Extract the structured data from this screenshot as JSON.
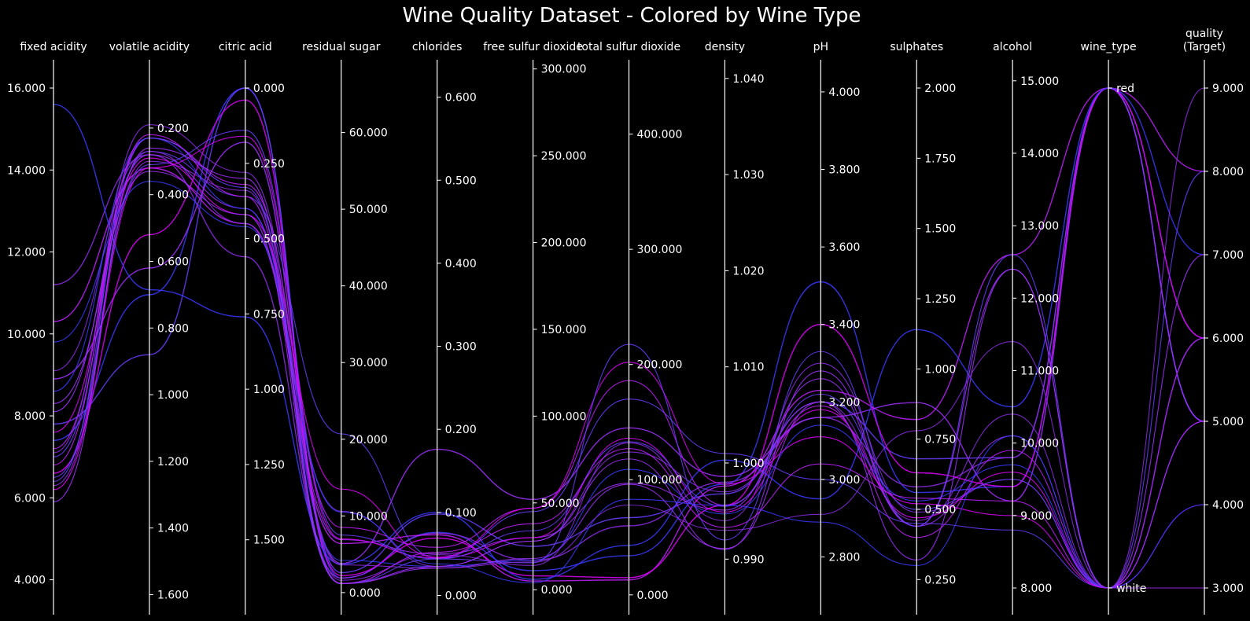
{
  "chart_data": {
    "type": "parallel_coordinates",
    "title": "Wine Quality Dataset - Colored by Wine Type",
    "background": "#000000",
    "line_colors": [
      "#3a3aff",
      "#6a3cff",
      "#8a2be2",
      "#a030ff",
      "#c020ff",
      "#e000ff"
    ],
    "axes": [
      {
        "label": "fixed acidity",
        "min": 3.8,
        "max": 16.0,
        "ticks": [
          16.0,
          14.0,
          12.0,
          10.0,
          8.0,
          6.0,
          4.0
        ],
        "tick_labels": [
          "16.000",
          "14.000",
          "12.000",
          "10.000",
          "8.000",
          "6.000",
          "4.000"
        ],
        "tick_side": "left"
      },
      {
        "label": "volatile acidity",
        "min": 0.08,
        "max": 1.58,
        "inverted": true,
        "ticks": [
          0.2,
          0.4,
          0.6,
          0.8,
          1.0,
          1.2,
          1.4,
          1.6
        ],
        "tick_labels": [
          "0.200",
          "0.400",
          "0.600",
          "0.800",
          "1.000",
          "1.200",
          "1.400",
          "1.600"
        ],
        "tick_side": "right"
      },
      {
        "label": "citric acid",
        "min": 0.0,
        "max": 1.66,
        "inverted": true,
        "ticks": [
          0.0,
          0.25,
          0.5,
          0.75,
          1.0,
          1.25,
          1.5
        ],
        "tick_labels": [
          "0.000",
          "0.250",
          "0.500",
          "0.750",
          "1.000",
          "1.250",
          "1.500"
        ],
        "tick_side": "right"
      },
      {
        "label": "residual sugar",
        "min": 0.6,
        "max": 65.8,
        "ticks": [
          0,
          10,
          20,
          30,
          40,
          50,
          60
        ],
        "tick_labels": [
          "0.000",
          "10.000",
          "20.000",
          "30.000",
          "40.000",
          "50.000",
          "60.000"
        ],
        "tick_side": "right"
      },
      {
        "label": "chlorides",
        "min": 0.009,
        "max": 0.611,
        "ticks": [
          0,
          0.1,
          0.2,
          0.3,
          0.4,
          0.5,
          0.6
        ],
        "tick_labels": [
          "0.000",
          "0.100",
          "0.200",
          "0.300",
          "0.400",
          "0.500",
          "0.600"
        ],
        "tick_side": "right"
      },
      {
        "label": "free sulfur dioxide",
        "min": 1.0,
        "max": 289.0,
        "ticks": [
          0,
          50,
          100,
          150,
          200,
          250,
          300
        ],
        "tick_labels": [
          "0.000",
          "50.000",
          "100.000",
          "150.000",
          "200.000",
          "250.000",
          "300.000"
        ],
        "tick_side": "right"
      },
      {
        "label": "total sulfur dioxide",
        "min": 6.0,
        "max": 440.0,
        "ticks": [
          0,
          100,
          200,
          300,
          400
        ],
        "tick_labels": [
          "0.000",
          "100.000",
          "200.000",
          "300.000",
          "400.000"
        ],
        "tick_side": "right"
      },
      {
        "label": "density",
        "min": 0.987,
        "max": 1.039,
        "ticks": [
          0.99,
          1.0,
          1.01,
          1.02,
          1.03,
          1.04
        ],
        "tick_labels": [
          "0.990",
          "1.000",
          "1.010",
          "1.020",
          "1.030",
          "1.040"
        ],
        "tick_side": "right"
      },
      {
        "label": "pH",
        "min": 2.72,
        "max": 4.01,
        "ticks": [
          2.8,
          3.0,
          3.2,
          3.4,
          3.6,
          3.8,
          4.0
        ],
        "tick_labels": [
          "2.800",
          "3.000",
          "3.200",
          "3.400",
          "3.600",
          "3.800",
          "4.000"
        ],
        "tick_side": "right"
      },
      {
        "label": "sulphates",
        "min": 0.22,
        "max": 2.0,
        "ticks": [
          0.25,
          0.5,
          0.75,
          1.0,
          1.25,
          1.5,
          1.75,
          2.0
        ],
        "tick_labels": [
          "0.250",
          "0.500",
          "0.750",
          "1.000",
          "1.250",
          "1.500",
          "1.750",
          "2.000"
        ],
        "tick_side": "right"
      },
      {
        "label": "alcohol",
        "min": 8.0,
        "max": 14.9,
        "ticks": [
          8,
          9,
          10,
          11,
          12,
          13,
          14,
          15
        ],
        "tick_labels": [
          "8.000",
          "9.000",
          "10.000",
          "11.000",
          "12.000",
          "13.000",
          "14.000",
          "15.000"
        ],
        "tick_side": "right"
      },
      {
        "label": "wine_type",
        "categorical": true,
        "categories": [
          "white",
          "red"
        ],
        "tick_side": "right"
      },
      {
        "label": "quality\n(Target)",
        "min": 3.0,
        "max": 9.0,
        "ticks": [
          3,
          4,
          5,
          6,
          7,
          8,
          9
        ],
        "tick_labels": [
          "3.000",
          "4.000",
          "5.000",
          "6.000",
          "7.000",
          "8.000",
          "9.000"
        ],
        "tick_side": "right"
      }
    ],
    "series": [
      {
        "values": [
          7.4,
          0.7,
          0.0,
          1.9,
          0.076,
          11,
          34,
          0.9978,
          3.51,
          0.56,
          9.4,
          "red",
          5
        ]
      },
      {
        "values": [
          7.8,
          0.88,
          0.0,
          2.6,
          0.098,
          25,
          67,
          0.9968,
          3.2,
          0.68,
          9.8,
          "red",
          5
        ]
      },
      {
        "values": [
          11.2,
          0.28,
          0.56,
          1.9,
          0.075,
          17,
          60,
          0.998,
          3.16,
          0.58,
          9.8,
          "red",
          6
        ]
      },
      {
        "values": [
          8.9,
          0.62,
          0.18,
          3.8,
          0.176,
          52,
          145,
          0.9986,
          3.16,
          0.88,
          9.2,
          "red",
          5
        ]
      },
      {
        "values": [
          10.3,
          0.32,
          0.45,
          6.4,
          0.073,
          5,
          13,
          0.9976,
          3.23,
          0.82,
          12.6,
          "red",
          8
        ]
      },
      {
        "values": [
          6.6,
          0.52,
          0.04,
          2.2,
          0.069,
          8,
          15,
          0.9956,
          3.4,
          0.63,
          9.4,
          "red",
          6
        ]
      },
      {
        "values": [
          15.6,
          0.685,
          0.76,
          3.7,
          0.1,
          6,
          43,
          1.0003,
          2.95,
          1.14,
          10.5,
          "red",
          7
        ]
      },
      {
        "values": [
          7.0,
          0.27,
          0.36,
          20.7,
          0.045,
          45,
          170,
          1.001,
          3.0,
          0.45,
          8.8,
          "white",
          6
        ]
      },
      {
        "values": [
          6.3,
          0.3,
          0.34,
          1.6,
          0.049,
          14,
          132,
          0.994,
          3.3,
          0.49,
          9.5,
          "white",
          6
        ]
      },
      {
        "values": [
          8.1,
          0.28,
          0.4,
          6.9,
          0.05,
          30,
          97,
          0.9951,
          3.26,
          0.44,
          10.1,
          "white",
          6
        ]
      },
      {
        "values": [
          7.2,
          0.23,
          0.32,
          8.5,
          0.058,
          47,
          186,
          0.9956,
          3.19,
          0.4,
          9.9,
          "white",
          6
        ]
      },
      {
        "values": [
          6.2,
          0.32,
          0.16,
          7.0,
          0.045,
          30,
          136,
          0.9949,
          3.18,
          0.47,
          9.6,
          "white",
          6
        ]
      },
      {
        "values": [
          8.6,
          0.23,
          0.4,
          4.2,
          0.035,
          17,
          109,
          0.9947,
          3.14,
          0.53,
          9.7,
          "white",
          5
        ]
      },
      {
        "values": [
          6.5,
          0.31,
          0.14,
          7.5,
          0.044,
          34,
          133,
          0.9955,
          3.22,
          0.5,
          9.5,
          "white",
          5
        ]
      },
      {
        "values": [
          9.1,
          0.27,
          0.45,
          10.6,
          0.035,
          28,
          124,
          0.997,
          3.2,
          0.46,
          10.4,
          "white",
          6
        ]
      },
      {
        "values": [
          5.9,
          0.26,
          0.3,
          1.2,
          0.035,
          28,
          118,
          0.991,
          3.28,
          0.44,
          12.4,
          "white",
          7
        ]
      },
      {
        "values": [
          6.8,
          0.22,
          0.36,
          1.2,
          0.052,
          38,
          127,
          0.9933,
          3.04,
          0.54,
          9.2,
          "white",
          5
        ]
      },
      {
        "values": [
          7.6,
          0.29,
          0.42,
          13.5,
          0.046,
          47,
          202,
          0.9978,
          3.11,
          0.52,
          9.0,
          "white",
          4
        ]
      },
      {
        "values": [
          9.8,
          0.36,
          0.46,
          10.5,
          0.038,
          4,
          83,
          0.9956,
          2.89,
          0.3,
          10.1,
          "white",
          4
        ]
      },
      {
        "values": [
          6.4,
          0.23,
          0.33,
          1.15,
          0.044,
          15.5,
          217.5,
          0.992,
          3.33,
          0.44,
          12.6,
          "white",
          8
        ]
      },
      {
        "values": [
          7.1,
          0.19,
          0.28,
          3.6,
          0.033,
          16,
          78,
          0.993,
          2.91,
          0.78,
          11.4,
          "white",
          9
        ]
      },
      {
        "values": [
          8.3,
          0.33,
          0.42,
          1.15,
          0.033,
          18,
          96,
          0.9911,
          3.2,
          0.32,
          12.4,
          "white",
          3
        ]
      }
    ]
  }
}
